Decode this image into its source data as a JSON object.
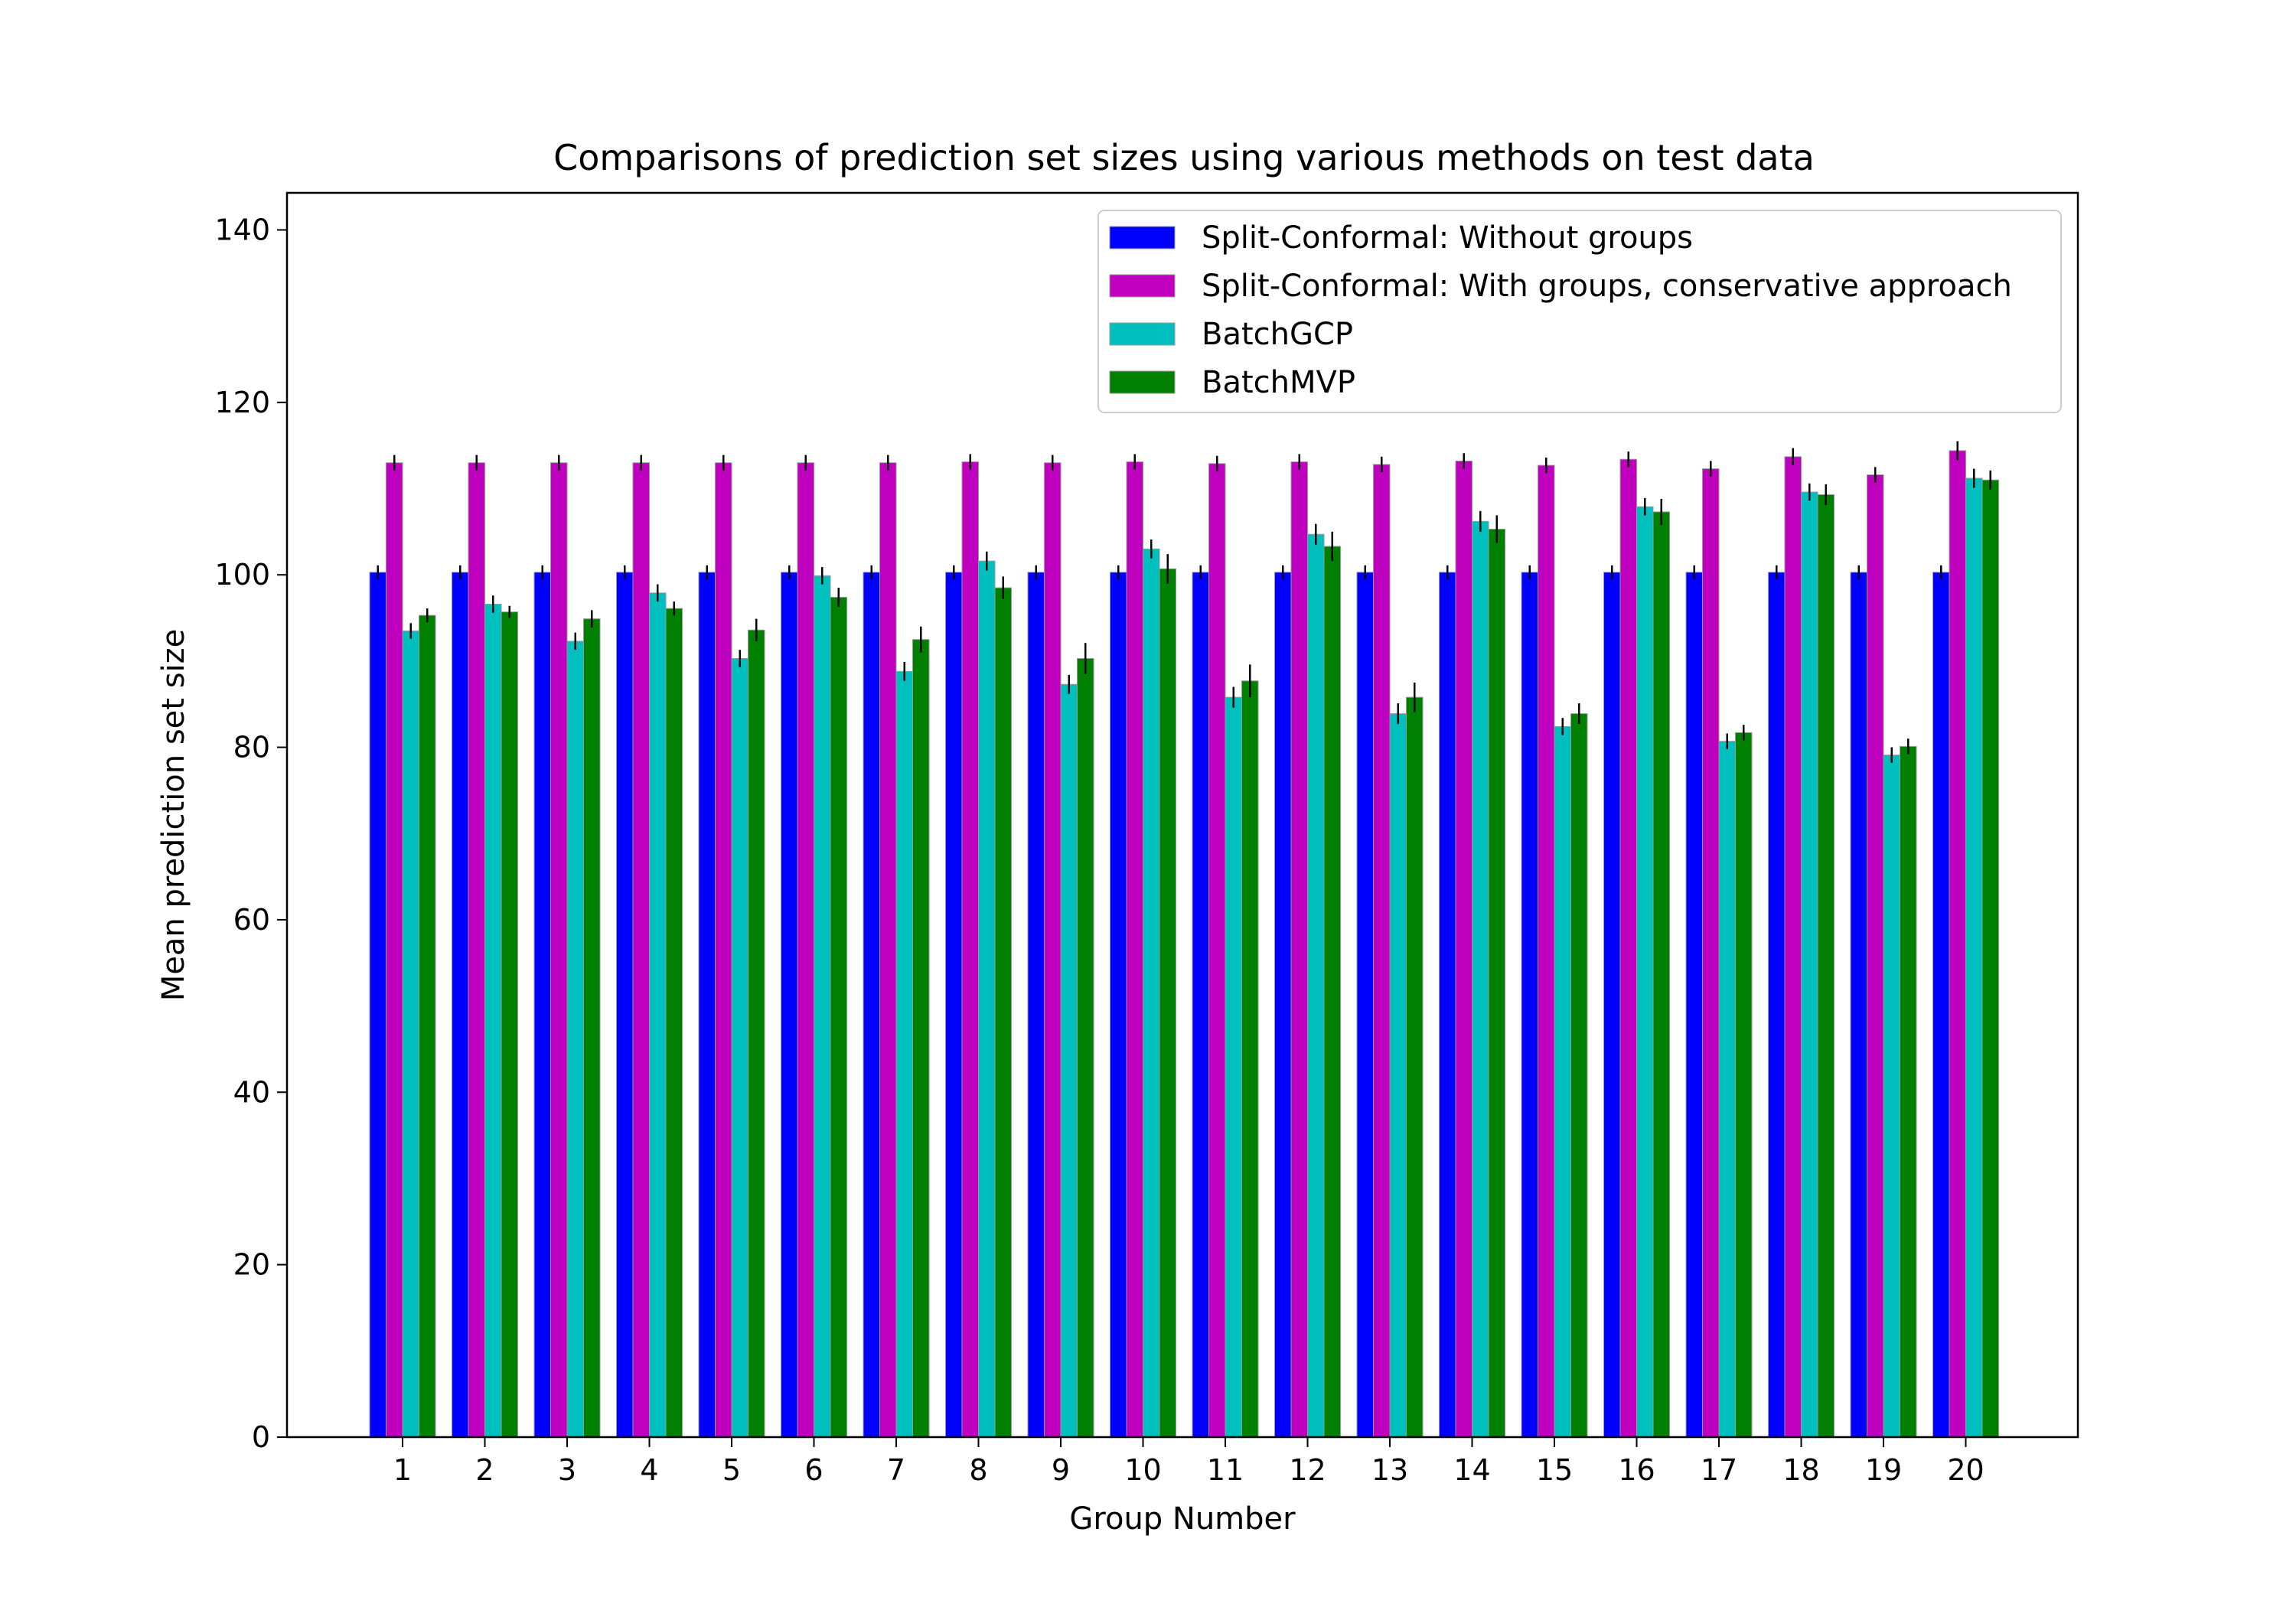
{
  "chart_data": {
    "type": "bar",
    "title": "Comparisons of prediction set sizes using various methods on test data",
    "xlabel": "Group Number",
    "ylabel": "Mean prediction set size",
    "ylim": [
      0,
      144.3
    ],
    "yticks": [
      0,
      20,
      40,
      60,
      80,
      100,
      120,
      140
    ],
    "grid": false,
    "legend_position": "top-right",
    "categories": [
      "1",
      "2",
      "3",
      "4",
      "5",
      "6",
      "7",
      "8",
      "9",
      "10",
      "11",
      "12",
      "13",
      "14",
      "15",
      "16",
      "17",
      "18",
      "19",
      "20"
    ],
    "series": [
      {
        "name": "Split-Conformal: Without groups",
        "color": "#0000ff",
        "values": [
          100.3,
          100.3,
          100.3,
          100.3,
          100.3,
          100.3,
          100.3,
          100.3,
          100.3,
          100.3,
          100.3,
          100.3,
          100.3,
          100.3,
          100.3,
          100.3,
          100.3,
          100.3,
          100.3,
          100.3
        ],
        "errors": [
          0.8,
          0.8,
          0.8,
          0.8,
          0.8,
          0.8,
          0.8,
          0.8,
          0.8,
          0.8,
          0.8,
          0.8,
          0.8,
          0.8,
          0.8,
          0.8,
          0.8,
          0.8,
          0.8,
          0.8
        ]
      },
      {
        "name": "Split-Conformal: With groups, conservative approach",
        "color": "#bf00bf",
        "values": [
          113.0,
          113.0,
          113.0,
          113.0,
          113.0,
          113.0,
          113.0,
          113.1,
          113.0,
          113.1,
          112.9,
          113.1,
          112.8,
          113.2,
          112.7,
          113.4,
          112.3,
          113.7,
          111.6,
          114.4
        ],
        "errors": [
          0.9,
          0.9,
          0.9,
          0.9,
          0.9,
          0.9,
          0.9,
          0.9,
          0.9,
          0.9,
          0.9,
          0.9,
          0.9,
          0.9,
          0.9,
          0.9,
          0.9,
          1.0,
          0.9,
          1.1
        ]
      },
      {
        "name": "BatchGCP",
        "color": "#00bfbf",
        "values": [
          93.5,
          96.6,
          92.3,
          97.9,
          90.3,
          99.9,
          88.8,
          101.6,
          87.3,
          103.0,
          85.8,
          104.7,
          83.9,
          106.2,
          82.4,
          107.9,
          80.7,
          109.6,
          79.1,
          111.2
        ],
        "errors": [
          0.9,
          1.0,
          1.0,
          1.0,
          1.0,
          1.0,
          1.1,
          1.1,
          1.1,
          1.1,
          1.2,
          1.2,
          1.2,
          1.2,
          1.0,
          1.0,
          0.9,
          1.0,
          0.9,
          1.1
        ]
      },
      {
        "name": "BatchMVP",
        "color": "#008000",
        "values": [
          95.3,
          95.7,
          94.9,
          96.1,
          93.6,
          97.4,
          92.5,
          98.5,
          90.3,
          100.7,
          87.7,
          103.3,
          85.8,
          105.3,
          83.9,
          107.3,
          81.7,
          109.3,
          80.1,
          111.0
        ],
        "errors": [
          0.8,
          0.7,
          1.0,
          0.8,
          1.3,
          1.1,
          1.5,
          1.3,
          1.8,
          1.7,
          1.9,
          1.7,
          1.7,
          1.6,
          1.2,
          1.5,
          0.9,
          1.2,
          0.9,
          1.1
        ]
      }
    ]
  }
}
